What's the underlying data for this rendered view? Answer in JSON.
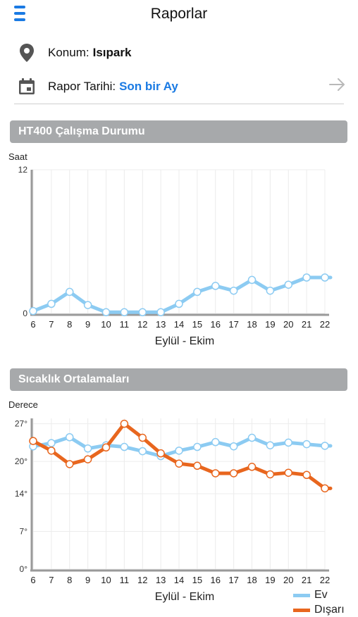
{
  "header": {
    "title": "Raporlar",
    "menu_icon": "hamburger-menu-icon"
  },
  "location": {
    "icon": "map-pin-icon",
    "label": "Konum:",
    "value": "Isıpark"
  },
  "report_date": {
    "icon": "calendar-icon",
    "label": "Rapor Tarihi:",
    "value": "Son bir Ay",
    "value_color": "#1a7ae3",
    "action_icon": "arrow-right-icon"
  },
  "sections": {
    "operation": "HT400 Çalışma Durumu",
    "temperature": "Sıcaklık Ortalamaları"
  },
  "colors": {
    "ev": "#8ccbf2",
    "disari": "#e8661e",
    "section_bg": "#a7a9ab",
    "accent": "#1a7ae3"
  },
  "chart_data": [
    {
      "type": "line",
      "ylabel": "Saat",
      "xlabel": "Eylül - Ekim",
      "ylim": [
        0,
        12
      ],
      "y_ticks": [
        "12",
        "0"
      ],
      "y_tick_values": [
        12,
        0
      ],
      "categories": [
        "6",
        "7",
        "8",
        "9",
        "10",
        "11",
        "12",
        "13",
        "14",
        "15",
        "16",
        "17",
        "18",
        "19",
        "20",
        "21",
        "22"
      ],
      "grid": true,
      "series": [
        {
          "color": "#8ccbf2",
          "values": [
            0.2,
            0.8,
            1.8,
            0.7,
            0.1,
            0.1,
            0.1,
            0.1,
            0.8,
            1.8,
            2.3,
            1.9,
            2.8,
            1.9,
            2.4,
            3.0,
            3.0
          ]
        }
      ]
    },
    {
      "type": "line",
      "ylabel": "Derece",
      "xlabel": "Eylül - Ekim",
      "ylim": [
        0,
        28
      ],
      "y_ticks": [
        "27°",
        "20°",
        "14°",
        "7°",
        "0°"
      ],
      "y_tick_values": [
        27,
        20,
        14,
        7,
        0
      ],
      "categories": [
        "6",
        "7",
        "8",
        "9",
        "10",
        "11",
        "12",
        "13",
        "14",
        "15",
        "16",
        "17",
        "18",
        "19",
        "20",
        "21",
        "22"
      ],
      "grid": true,
      "legend_position": "bottom-right",
      "series": [
        {
          "name": "Ev",
          "color": "#8ccbf2",
          "values": [
            22.8,
            23.4,
            24.5,
            22.4,
            23.0,
            22.7,
            21.9,
            21.0,
            22.0,
            22.7,
            23.6,
            22.8,
            24.4,
            23.0,
            23.5,
            23.2,
            22.9
          ]
        },
        {
          "name": "Dışarı",
          "color": "#e8661e",
          "values": [
            23.8,
            22.0,
            19.5,
            20.4,
            22.6,
            27.0,
            24.4,
            21.5,
            19.6,
            19.2,
            17.8,
            17.8,
            19.0,
            17.6,
            17.9,
            17.5,
            15.0
          ]
        }
      ]
    }
  ]
}
